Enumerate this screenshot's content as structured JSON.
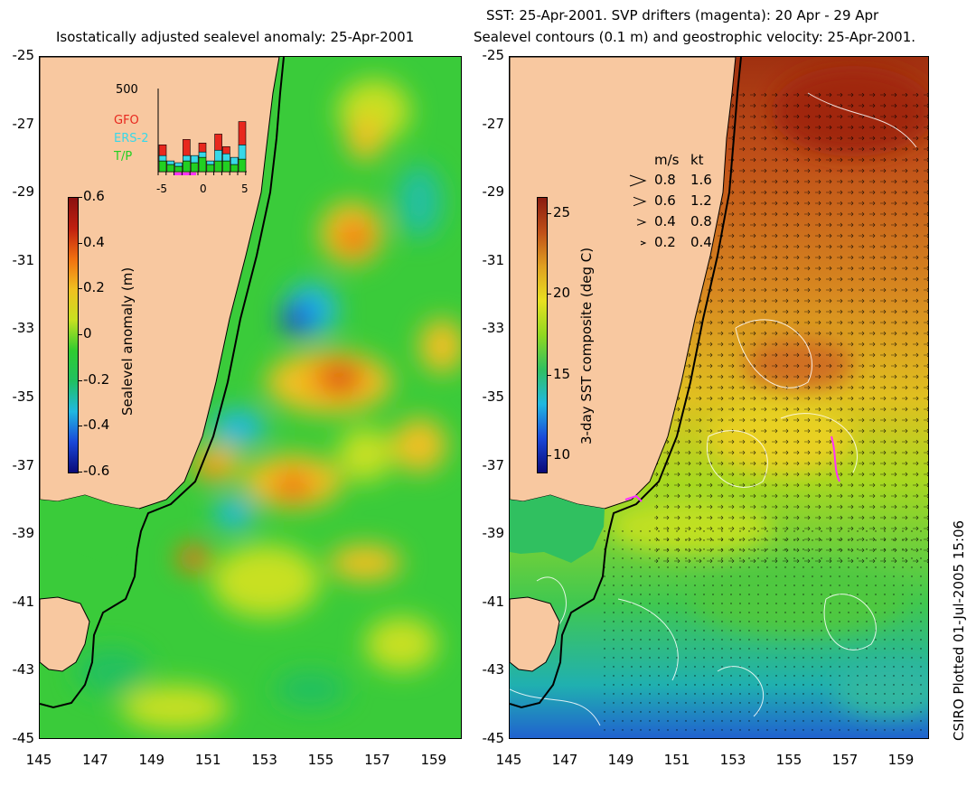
{
  "left_panel": {
    "title": "Isostatically adjusted sealevel anomaly: 25-Apr-2001",
    "colorbar": {
      "title": "Sealevel anomaly (m)",
      "ticks": [
        "0.6",
        "0.4",
        "0.2",
        "0",
        "-0.2",
        "-0.4",
        "-0.6"
      ],
      "range": [
        -0.6,
        0.6
      ]
    },
    "inset": {
      "ymax_label": "500",
      "x_ticks": [
        "-5",
        "0",
        "5"
      ],
      "legend": [
        {
          "label": "GFO",
          "color": "#e8281e"
        },
        {
          "label": "ERS-2",
          "color": "#38d8e8"
        },
        {
          "label": "T/P",
          "color": "#22d022"
        }
      ],
      "bars": [
        {
          "tp": 30,
          "ers": 15,
          "gfo": 30
        },
        {
          "tp": 20,
          "ers": 10,
          "gfo": 0
        },
        {
          "tp": 15,
          "ers": 10,
          "gfo": 0
        },
        {
          "tp": 30,
          "ers": 15,
          "gfo": 45
        },
        {
          "tp": 25,
          "ers": 20,
          "gfo": 0
        },
        {
          "tp": 40,
          "ers": 15,
          "gfo": 25
        },
        {
          "tp": 20,
          "ers": 10,
          "gfo": 0
        },
        {
          "tp": 30,
          "ers": 30,
          "gfo": 45
        },
        {
          "tp": 30,
          "ers": 20,
          "gfo": 20
        },
        {
          "tp": 20,
          "ers": 20,
          "gfo": 0
        },
        {
          "tp": 35,
          "ers": 40,
          "gfo": 65
        }
      ]
    }
  },
  "right_panel": {
    "title_line1": "SST: 25-Apr-2001. SVP drifters (magenta): 20 Apr - 29 Apr",
    "title_line2": "Sealevel contours (0.1 m) and geostrophic velocity: 25-Apr-2001.",
    "colorbar": {
      "title": "3-day SST composite (deg C)",
      "ticks": [
        "25",
        "20",
        "15",
        "10"
      ],
      "range": [
        9,
        26
      ]
    },
    "velocity_legend": {
      "header_ms": "m/s",
      "header_kt": "kt",
      "rows": [
        {
          "ms": "0.8",
          "kt": "1.6"
        },
        {
          "ms": "0.6",
          "kt": "1.2"
        },
        {
          "ms": "0.4",
          "kt": "0.8"
        },
        {
          "ms": "0.2",
          "kt": "0.4"
        }
      ]
    }
  },
  "axes": {
    "y_ticks": [
      "-25",
      "-27",
      "-29",
      "-31",
      "-33",
      "-35",
      "-37",
      "-39",
      "-41",
      "-43",
      "-45"
    ],
    "x_ticks": [
      "145",
      "147",
      "149",
      "151",
      "153",
      "155",
      "157",
      "159"
    ],
    "lat_range": [
      -45,
      -25
    ],
    "lon_range": [
      145,
      160
    ]
  },
  "credit": "CSIRO Plotted 01-Jul-2005 15:06",
  "colors": {
    "land": "#f8c8a0",
    "sla_scale": [
      "#0a0a78",
      "#1a48d8",
      "#20b8e0",
      "#20c060",
      "#30cc30",
      "#c8e020",
      "#f0c020",
      "#f07010",
      "#c02010"
    ],
    "sst_scale": [
      "#0a0a78",
      "#1a48d8",
      "#20b8e0",
      "#20c060",
      "#90d820",
      "#e0e020",
      "#e8a820",
      "#d07020",
      "#a02010"
    ]
  }
}
